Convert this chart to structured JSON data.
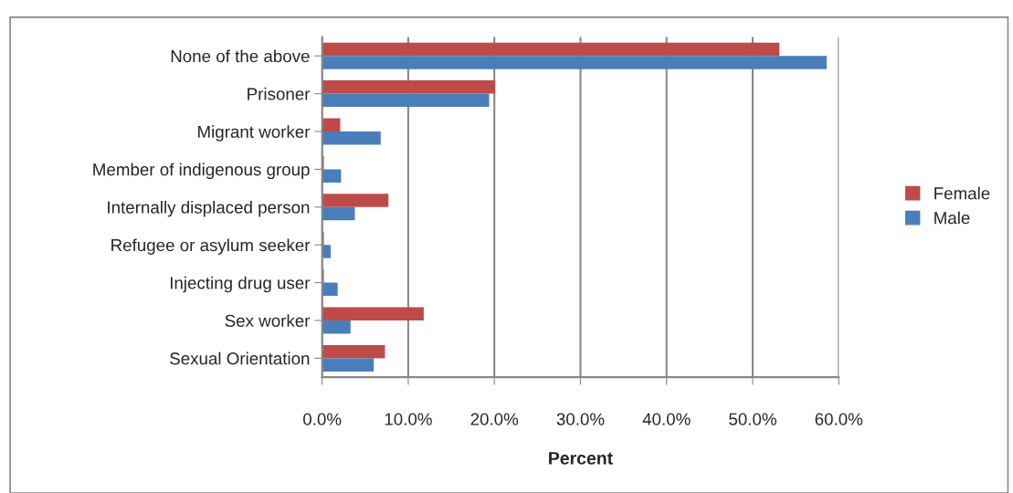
{
  "chart_data": {
    "type": "bar",
    "orientation": "horizontal",
    "xlabel": "Percent",
    "categories": [
      "None of the above",
      "Prisoner",
      "Migrant worker",
      "Member of indigenous group",
      "Internally displaced person",
      "Refugee or asylum seeker",
      "Injecting drug user",
      "Sex worker",
      "Sexual Orientation"
    ],
    "series": [
      {
        "name": "Female",
        "color": "#be4b48",
        "values": [
          53.1,
          20.1,
          2.1,
          0.2,
          7.7,
          0.2,
          0.2,
          11.8,
          7.3
        ]
      },
      {
        "name": "Male",
        "color": "#4a7ebb",
        "values": [
          58.6,
          19.4,
          6.8,
          2.2,
          3.8,
          1.0,
          1.8,
          3.3,
          6.0
        ]
      }
    ],
    "xlim": [
      0,
      60
    ],
    "xticks": [
      {
        "value": 0,
        "label": "0.0%"
      },
      {
        "value": 10,
        "label": "10.0%"
      },
      {
        "value": 20,
        "label": "20.0%"
      },
      {
        "value": 30,
        "label": "30.0%"
      },
      {
        "value": 40,
        "label": "40.0%"
      },
      {
        "value": 50,
        "label": "50.0%"
      },
      {
        "value": 60,
        "label": "60.0%"
      }
    ],
    "grid": "x",
    "legend": "right"
  }
}
